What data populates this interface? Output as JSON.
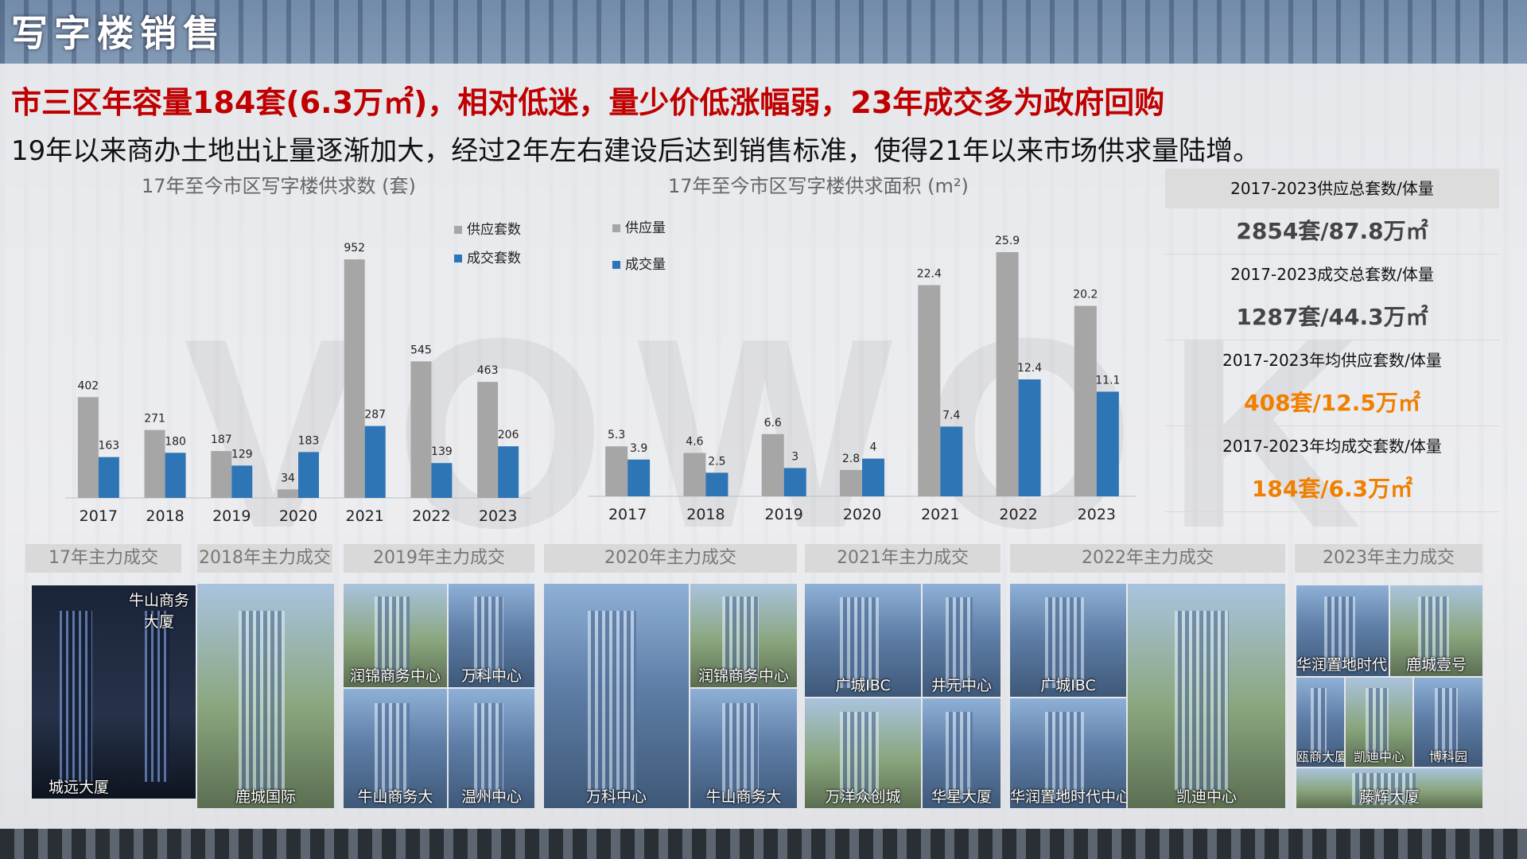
{
  "page": {
    "title": "写字楼销售",
    "headline": "市三区年容量184套(6.3万㎡)，相对低迷，量少价低涨幅弱，23年成交多为政府回购",
    "subline": "19年以来商办土地出让量逐渐加大，经过2年左右建设后达到销售标准，使得21年以来市场供求量陆增。",
    "watermark": "VOWOK"
  },
  "chart_data": [
    {
      "type": "bar",
      "title": "17年至今市区写字楼供求数 (套)",
      "categories": [
        "2017",
        "2018",
        "2019",
        "2020",
        "2021",
        "2022",
        "2023"
      ],
      "series": [
        {
          "name": "供应套数",
          "values": [
            402,
            271,
            187,
            34,
            952,
            545,
            463
          ],
          "color": "#a6a6a6"
        },
        {
          "name": "成交套数",
          "values": [
            163,
            180,
            129,
            183,
            287,
            139,
            206
          ],
          "color": "#2e75b6"
        }
      ],
      "ylim": [
        0,
        1000
      ],
      "legend": "top-right",
      "grid": false
    },
    {
      "type": "bar",
      "title": "17年至今市区写字楼供求面积 (m²)",
      "categories": [
        "2017",
        "2018",
        "2019",
        "2020",
        "2021",
        "2022",
        "2023"
      ],
      "series": [
        {
          "name": "供应量",
          "values": [
            5.3,
            4.6,
            6.6,
            2.8,
            22.4,
            25.9,
            20.2
          ],
          "color": "#a6a6a6"
        },
        {
          "name": "成交量",
          "values": [
            3.9,
            2.5,
            3.0,
            4.0,
            7.4,
            12.4,
            11.1
          ],
          "color": "#2e75b6"
        }
      ],
      "ylim": [
        0,
        27
      ],
      "legend": "top-left",
      "grid": false
    }
  ],
  "stats": [
    {
      "label": "2017-2023供应总套数/体量",
      "value": "2854套/87.8万㎡",
      "highlight": false
    },
    {
      "label": "2017-2023成交总套数/体量",
      "value": "1287套/44.3万㎡",
      "highlight": false
    },
    {
      "label": "2017-2023年均供应套数/体量",
      "value": "408套/12.5万㎡",
      "highlight": true
    },
    {
      "label": "2017-2023年均成交套数/体量",
      "value": "184套/6.3万㎡",
      "highlight": true
    }
  ],
  "deals": {
    "headers": [
      "17年主力成交",
      "2018年主力成交",
      "2019年主力成交",
      "2020年主力成交",
      "2021年主力成交",
      "2022年主力成交",
      "2023年主力成交"
    ],
    "tiles": {
      "y2017_a": "城远大厦",
      "y2017_b": "牛山商务大厦",
      "y2018_a": "鹿城国际",
      "y2019_a": "润锦商务中心",
      "y2019_b": "万科中心",
      "y2019_c": "牛山商务大",
      "y2019_d": "温州中心",
      "y2020_a": "万科中心",
      "y2020_b": "润锦商务中心",
      "y2020_c": "牛山商务大",
      "y2021_a": "广城IBC",
      "y2021_b": "井元中心",
      "y2021_c": "万洋众创城",
      "y2021_d": "华星大厦",
      "y2022_a": "广城IBC",
      "y2022_b": "华润置地时代中心",
      "y2022_c": "凯迪中心",
      "y2023_a": "华润置地时代中心",
      "y2023_b": "鹿城壹号",
      "y2023_c": "瓯商大厦",
      "y2023_d": "凯迪中心",
      "y2023_e": "博科园",
      "y2023_f": "藤辉大厦"
    }
  },
  "colors": {
    "headline": "#c00000",
    "supply": "#a6a6a6",
    "deal": "#2e75b6",
    "highlight": "#f07f00"
  }
}
